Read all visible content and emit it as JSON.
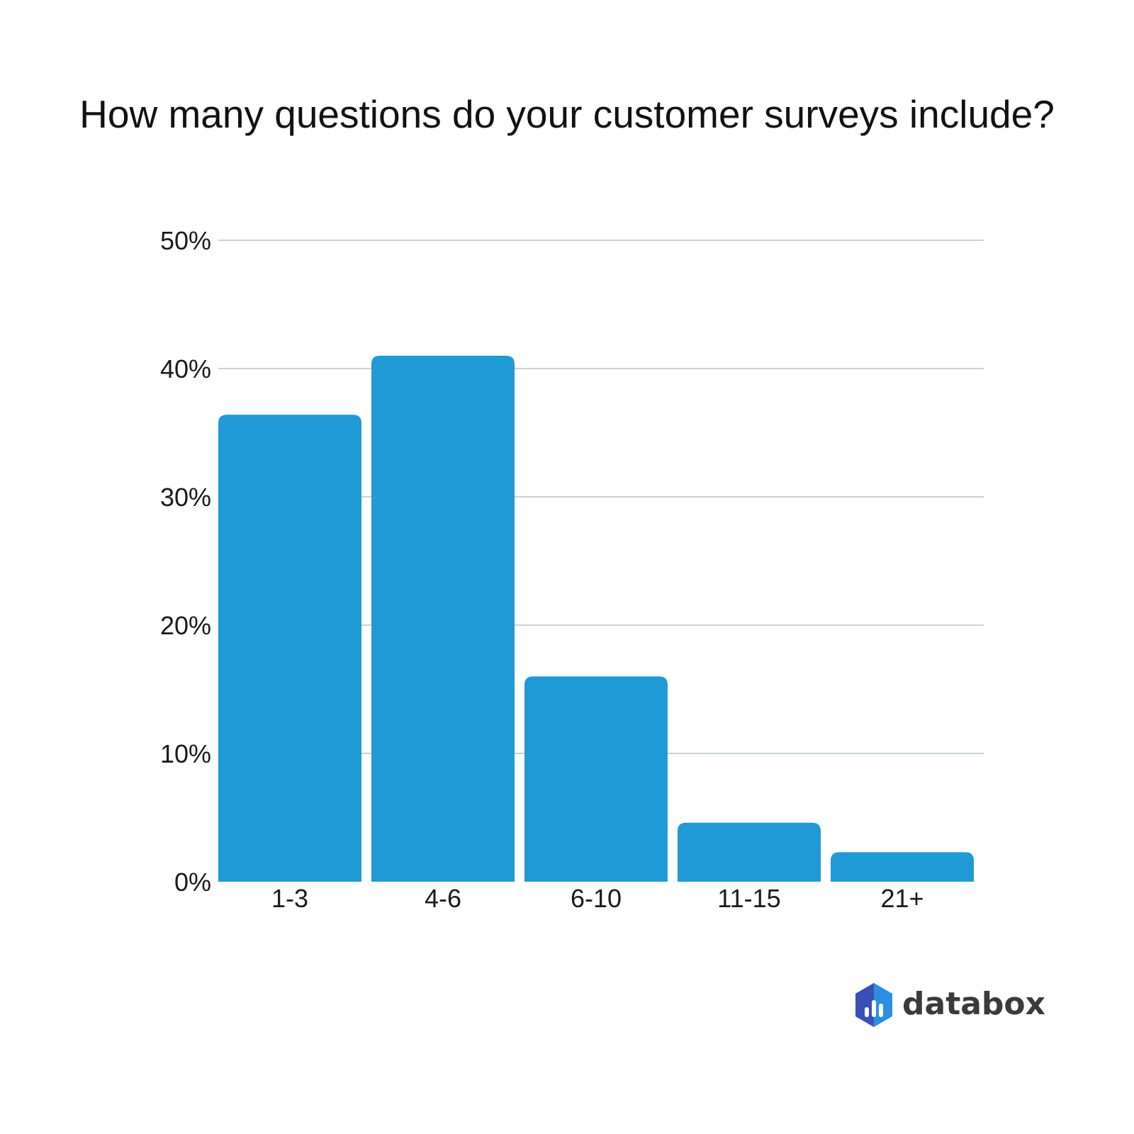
{
  "chart_data": {
    "type": "bar",
    "title": "How many questions do your customer surveys include?",
    "categories": [
      "1-3",
      "4-6",
      "6-10",
      "11-15",
      "21+"
    ],
    "values": [
      36.4,
      41.0,
      16.0,
      4.6,
      2.3
    ],
    "ylim": [
      0,
      50
    ],
    "yticks": [
      0,
      10,
      20,
      30,
      40,
      50
    ],
    "ytick_labels": [
      "0%",
      "10%",
      "20%",
      "30%",
      "40%",
      "50%"
    ],
    "xlabel": "",
    "ylabel": "",
    "grid": true,
    "legend": "none",
    "bar_color": "#1f9ad6",
    "grid_color": "#c9d3d9"
  },
  "brand": {
    "name": "databox",
    "icon": "databox-logo-icon",
    "colors": [
      "#3f51b5",
      "#2196f3"
    ]
  }
}
